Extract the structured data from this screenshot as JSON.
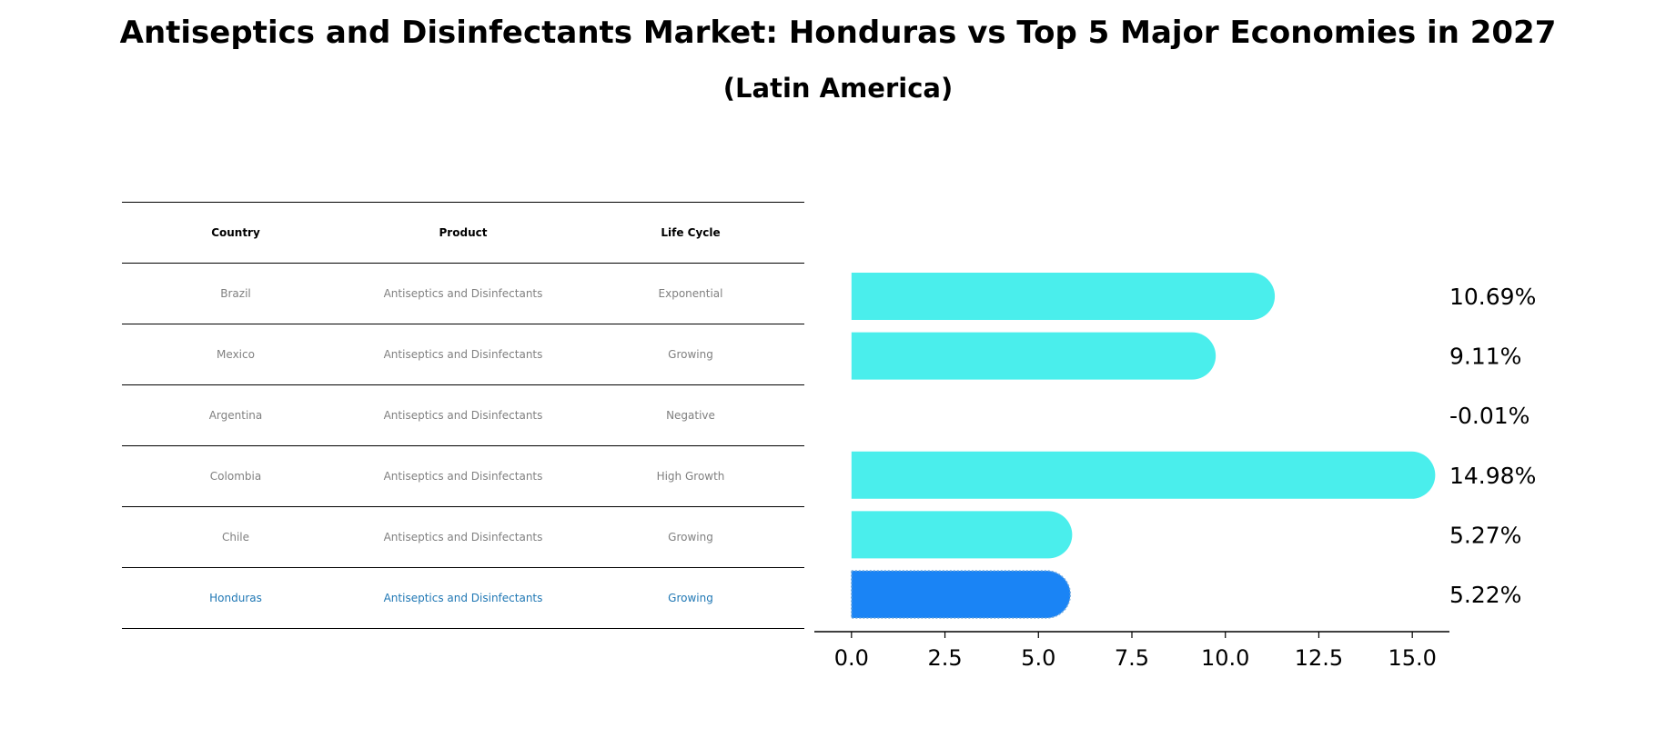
{
  "chart_data": {
    "type": "bar",
    "title": "Antiseptics and Disinfectants Market: Honduras vs Top 5 Major Economies in 2027",
    "subtitle": "(Latin America)",
    "table": {
      "headers": [
        "Country",
        "Product",
        "Life Cycle"
      ],
      "rows": [
        [
          "Brazil",
          "Antiseptics and Disinfectants",
          "Exponential"
        ],
        [
          "Mexico",
          "Antiseptics and Disinfectants",
          "Growing"
        ],
        [
          "Argentina",
          "Antiseptics and Disinfectants",
          "Negative"
        ],
        [
          "Colombia",
          "Antiseptics and Disinfectants",
          "High Growth"
        ],
        [
          "Chile",
          "Antiseptics and Disinfectants",
          "Growing"
        ],
        [
          "Honduras",
          "Antiseptics and Disinfectants",
          "Growing"
        ]
      ]
    },
    "categories": [
      "Brazil",
      "Mexico",
      "Argentina",
      "Colombia",
      "Chile",
      "Honduras"
    ],
    "values": [
      10.69,
      9.11,
      -0.01,
      14.98,
      5.27,
      5.22
    ],
    "value_labels": [
      "10.69%",
      "9.11%",
      "-0.01%",
      "14.98%",
      "5.27%",
      "5.22%"
    ],
    "xlim": [
      -0.75,
      15.75
    ],
    "xticks": [
      0.0,
      2.5,
      5.0,
      7.5,
      10.0,
      12.5,
      15.0
    ],
    "xtick_labels": [
      "0.0",
      "2.5",
      "5.0",
      "7.5",
      "10.0",
      "12.5",
      "15.0"
    ],
    "highlight": "Honduras",
    "colors": {
      "bar": "#4aeeec",
      "highlight": "#1a84f5",
      "table_text": "#808080",
      "table_highlight": "#1f77b4"
    }
  }
}
